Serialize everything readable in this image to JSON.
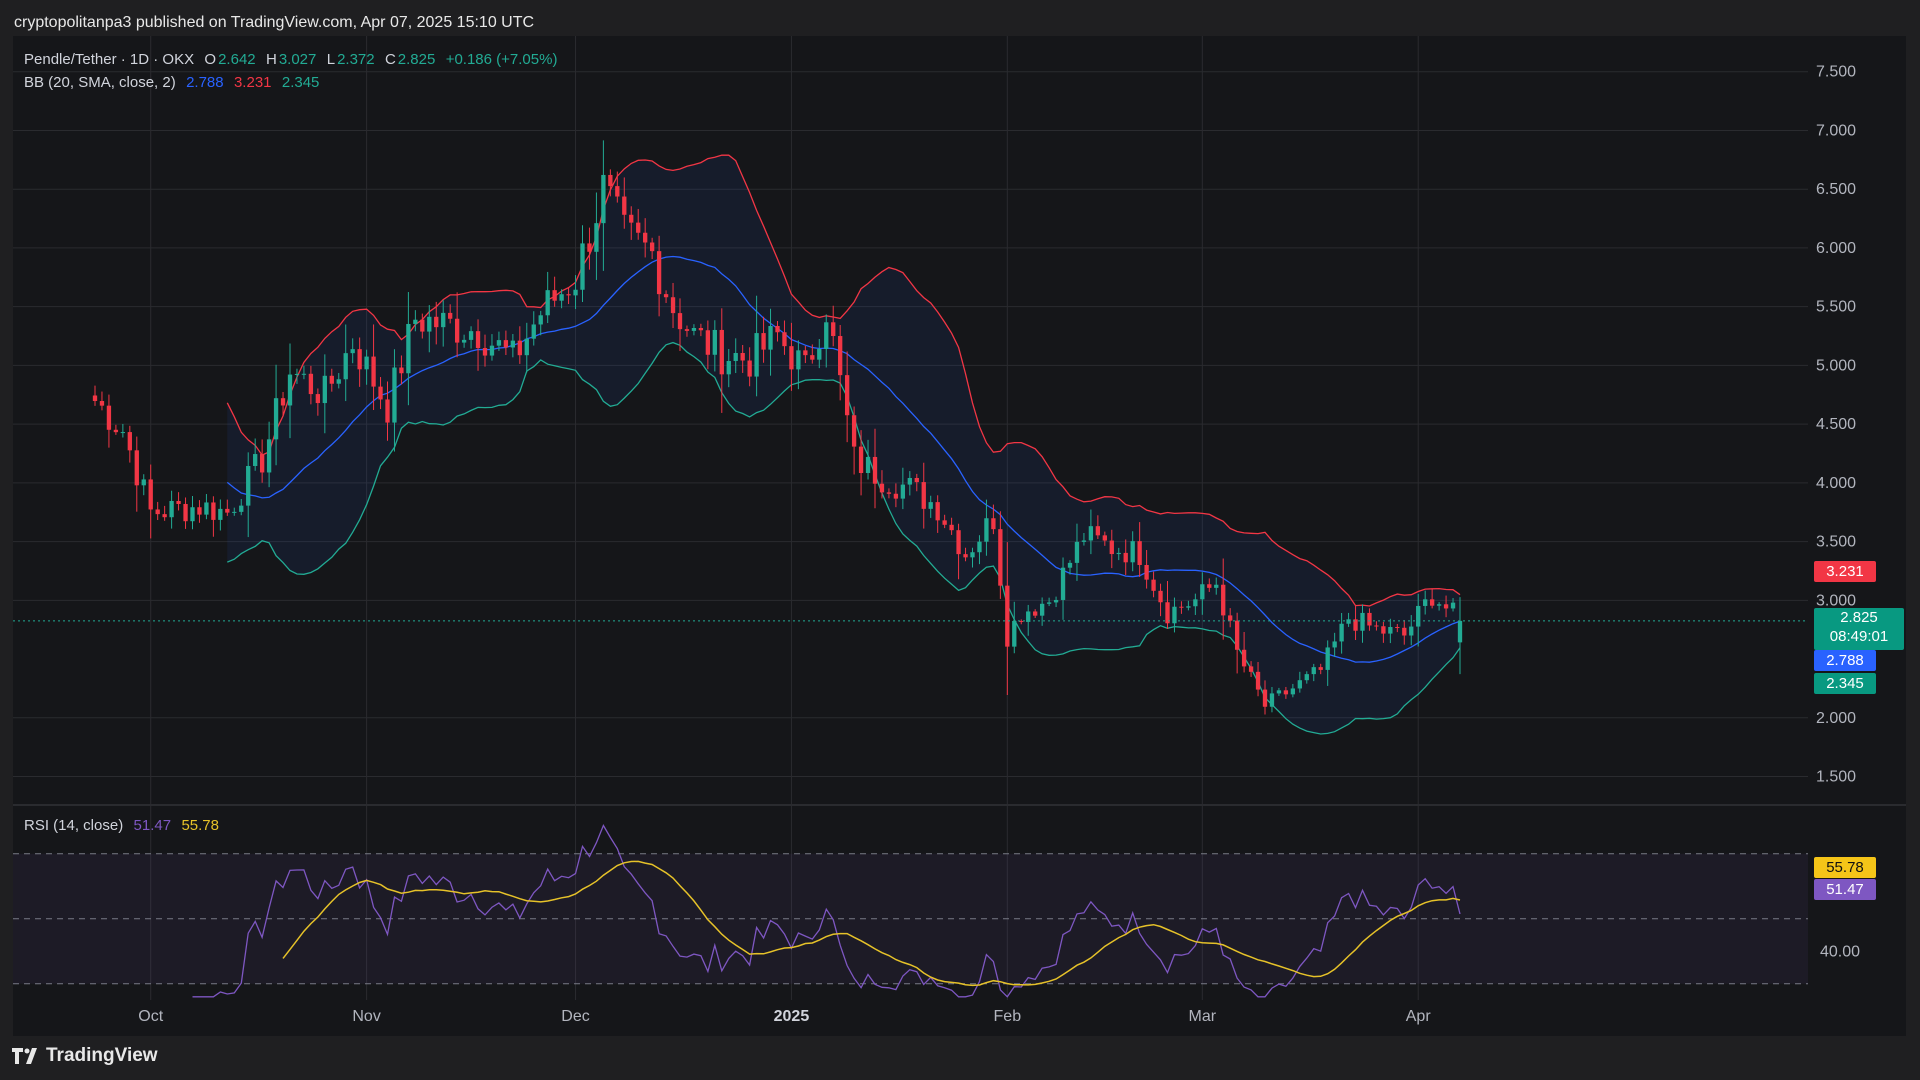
{
  "header": {
    "published_text": "cryptopolitanpa3 published on TradingView.com, Apr 07, 2025 15:10 UTC"
  },
  "footer": {
    "brand": "TradingView"
  },
  "legend": {
    "symbol": "Pendle/Tether · 1D · OKX",
    "o_label": "O",
    "o_value": "2.642",
    "h_label": "H",
    "h_value": "3.027",
    "l_label": "L",
    "l_value": "2.372",
    "c_label": "C",
    "c_value": "2.825",
    "change": "+0.186 (+7.05%)",
    "bb_label": "BB (20, SMA, close, 2)",
    "bb_basis": "2.788",
    "bb_upper": "3.231",
    "bb_lower": "2.345",
    "rsi_label": "RSI (14, close)",
    "rsi_value": "51.47",
    "rsi_ma_value": "55.78"
  },
  "price_tags": {
    "upper": "3.231",
    "close": "2.825",
    "countdown": "08:49:01",
    "basis": "2.788",
    "lower": "2.345",
    "rsi_ma": "55.78",
    "rsi": "51.47"
  },
  "colors": {
    "up": "#22ab94",
    "down": "#f23645",
    "bb_basis": "#2962ff",
    "bb_upper": "#f23645",
    "bb_lower": "#22ab94",
    "rsi": "#7e57c2",
    "rsi_ma": "#e6c229",
    "background": "#151619",
    "grid": "#2a2b2f"
  },
  "chart_data": {
    "type": "candlestick",
    "symbol": "Pendle/Tether",
    "timeframe": "1D",
    "exchange": "OKX",
    "price_axis": {
      "ticks": [
        "7.500",
        "7.000",
        "6.500",
        "6.000",
        "5.500",
        "5.000",
        "4.500",
        "4.000",
        "3.500",
        "3.000",
        "2.000",
        "1.500"
      ],
      "range": [
        1.3,
        7.6
      ]
    },
    "time_axis": {
      "ticks": [
        "Oct",
        "Nov",
        "Dec",
        "2025",
        "Feb",
        "Mar",
        "Apr"
      ],
      "tick_dates": [
        "2024-10-01",
        "2024-11-01",
        "2024-12-01",
        "2025-01-01",
        "2025-02-01",
        "2025-03-01",
        "2025-04-01"
      ],
      "range": [
        "2024-09-23",
        "2025-04-07"
      ]
    },
    "price_anchors": {
      "dates": [
        "2024-09-23",
        "2024-09-27",
        "2024-10-01",
        "2024-10-08",
        "2024-10-12",
        "2024-10-17",
        "2024-10-21",
        "2024-10-26",
        "2024-10-30",
        "2024-11-04",
        "2024-11-08",
        "2024-11-12",
        "2024-11-17",
        "2024-11-22",
        "2024-11-26",
        "2024-12-01",
        "2024-12-05",
        "2024-12-08",
        "2024-12-12",
        "2024-12-15",
        "2024-12-18",
        "2024-12-22",
        "2024-12-26",
        "2024-12-30",
        "2025-01-03",
        "2025-01-06",
        "2025-01-10",
        "2025-01-14",
        "2025-01-18",
        "2025-01-22",
        "2025-01-26",
        "2025-01-30",
        "2025-02-01",
        "2025-02-03",
        "2025-02-07",
        "2025-02-12",
        "2025-02-16",
        "2025-02-20",
        "2025-02-24",
        "2025-02-28",
        "2025-03-03",
        "2025-03-06",
        "2025-03-10",
        "2025-03-14",
        "2025-03-18",
        "2025-03-22",
        "2025-03-26",
        "2025-03-30",
        "2025-04-03",
        "2025-04-07"
      ],
      "close": [
        4.7,
        4.45,
        3.75,
        3.8,
        3.75,
        4.2,
        4.95,
        4.75,
        5.2,
        4.65,
        5.4,
        5.35,
        5.3,
        5.05,
        5.45,
        5.75,
        6.5,
        6.1,
        5.95,
        5.5,
        5.25,
        5.1,
        5.05,
        5.25,
        4.95,
        5.5,
        4.2,
        4.05,
        3.95,
        3.8,
        3.4,
        3.7,
        2.7,
        2.9,
        3.0,
        3.55,
        3.45,
        3.4,
        2.9,
        3.0,
        3.15,
        2.55,
        2.1,
        2.25,
        2.4,
        2.85,
        2.75,
        2.7,
        3.05,
        2.825
      ]
    },
    "last_ohlc": {
      "open": 2.642,
      "high": 3.027,
      "low": 2.372,
      "close": 2.825,
      "change": 0.186,
      "change_pct": 7.05
    },
    "bollinger": {
      "period": 20,
      "mult": 2,
      "source": "close",
      "upper": 3.231,
      "basis": 2.788,
      "lower": 2.345
    },
    "rsi": {
      "period": 14,
      "value": 51.47,
      "ma_value": 55.78,
      "axis_ticks": [
        "40.00"
      ],
      "bands": [
        30,
        50,
        70
      ],
      "range": [
        25,
        85
      ]
    }
  }
}
